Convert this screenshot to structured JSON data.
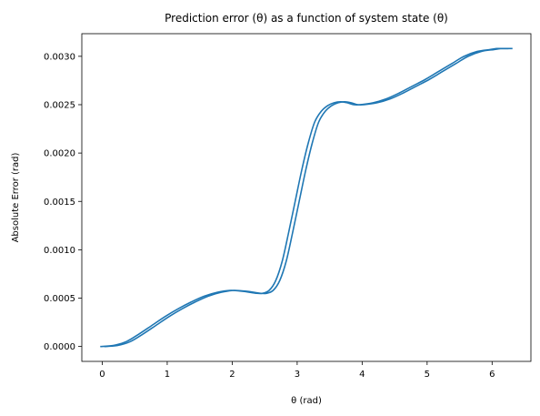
{
  "chart_data": {
    "type": "line",
    "title": "Prediction error (θ) as a function of system state (θ)",
    "xlabel": "θ (rad)",
    "ylabel": "Absolute Error (rad)",
    "xlim": [
      -0.3142,
      6.5973
    ],
    "ylim": [
      -0.000154,
      0.003234
    ],
    "xticks": [
      0,
      1,
      2,
      3,
      4,
      5,
      6
    ],
    "xtick_labels": [
      "0",
      "1",
      "2",
      "3",
      "4",
      "5",
      "6"
    ],
    "yticks": [
      0.0,
      0.0005,
      0.001,
      0.0015,
      0.002,
      0.0025,
      0.003
    ],
    "ytick_labels": [
      "0.0000",
      "0.0005",
      "0.0010",
      "0.0015",
      "0.0020",
      "0.0025",
      "0.0030"
    ],
    "grid": false,
    "legend": "none",
    "color": "#1f77b4",
    "series": [
      {
        "x": [
          0.0,
          0.2,
          0.4,
          0.6,
          0.8,
          1.0,
          1.2,
          1.4,
          1.6,
          1.8,
          2.0,
          2.2,
          2.4,
          2.5,
          2.6,
          2.7,
          2.8,
          2.9,
          3.0,
          3.1,
          3.2,
          3.3,
          3.4,
          3.5,
          3.6,
          3.7,
          3.8,
          3.9,
          4.0,
          4.2,
          4.4,
          4.6,
          4.8,
          5.0,
          5.2,
          5.4,
          5.6,
          5.8,
          6.0,
          6.1,
          6.2,
          6.283
        ],
        "y": [
          0.0,
          1e-05,
          5e-05,
          0.00013,
          0.00022,
          0.00031,
          0.00039,
          0.00046,
          0.00052,
          0.00056,
          0.00058,
          0.00057,
          0.00055,
          0.00055,
          0.00058,
          0.00068,
          0.00088,
          0.00118,
          0.0015,
          0.00182,
          0.0021,
          0.00232,
          0.00243,
          0.00249,
          0.00252,
          0.00253,
          0.00252,
          0.0025,
          0.0025,
          0.00252,
          0.00256,
          0.00262,
          0.00269,
          0.00276,
          0.00284,
          0.00292,
          0.003,
          0.00305,
          0.00307,
          0.00308,
          0.00308,
          0.00308
        ]
      }
    ]
  }
}
